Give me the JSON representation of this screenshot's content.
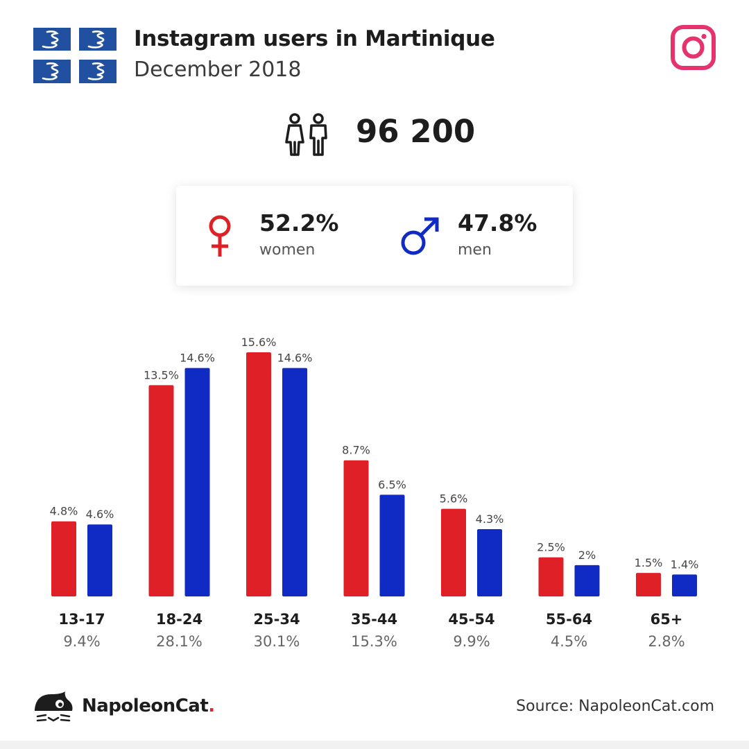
{
  "header": {
    "title": "Instagram users in Martinique",
    "subtitle": "December 2018"
  },
  "total_users": "96 200",
  "gender": {
    "women": {
      "percent": "52.2%",
      "label": "women"
    },
    "men": {
      "percent": "47.8%",
      "label": "men"
    }
  },
  "colors": {
    "women": "#df2027",
    "men": "#102ac4",
    "instagram": "#e6336d",
    "flag_blue": "#2250a0"
  },
  "chart_data": {
    "type": "bar",
    "categories": [
      "13-17",
      "18-24",
      "25-34",
      "35-44",
      "45-54",
      "55-64",
      "65+"
    ],
    "category_totals": [
      "9.4%",
      "28.1%",
      "30.1%",
      "15.3%",
      "9.9%",
      "4.5%",
      "2.8%"
    ],
    "series": [
      {
        "values": [
          4.8,
          13.5,
          15.6,
          8.7,
          5.6,
          2.5,
          1.5
        ],
        "labels": [
          "4.8%",
          "13.5%",
          "15.6%",
          "8.7%",
          "5.6%",
          "2.5%",
          "1.5%"
        ]
      },
      {
        "values": [
          4.6,
          14.6,
          14.6,
          6.5,
          4.3,
          2,
          1.4
        ],
        "labels": [
          "4.6%",
          "14.6%",
          "14.6%",
          "6.5%",
          "4.3%",
          "2%",
          "1.4%"
        ]
      }
    ],
    "ylim": [
      0,
      15.6
    ]
  },
  "footer": {
    "brand": "NapoleonCat",
    "brand_dot": ".",
    "source": "Source: NapoleonCat.com"
  },
  "icons": {
    "flag": "martinique-flag-icon",
    "instagram": "instagram-icon",
    "users": "users-icon",
    "female": "female-symbol-icon",
    "male": "male-symbol-icon",
    "logo": "napoleoncat-logo-icon"
  }
}
